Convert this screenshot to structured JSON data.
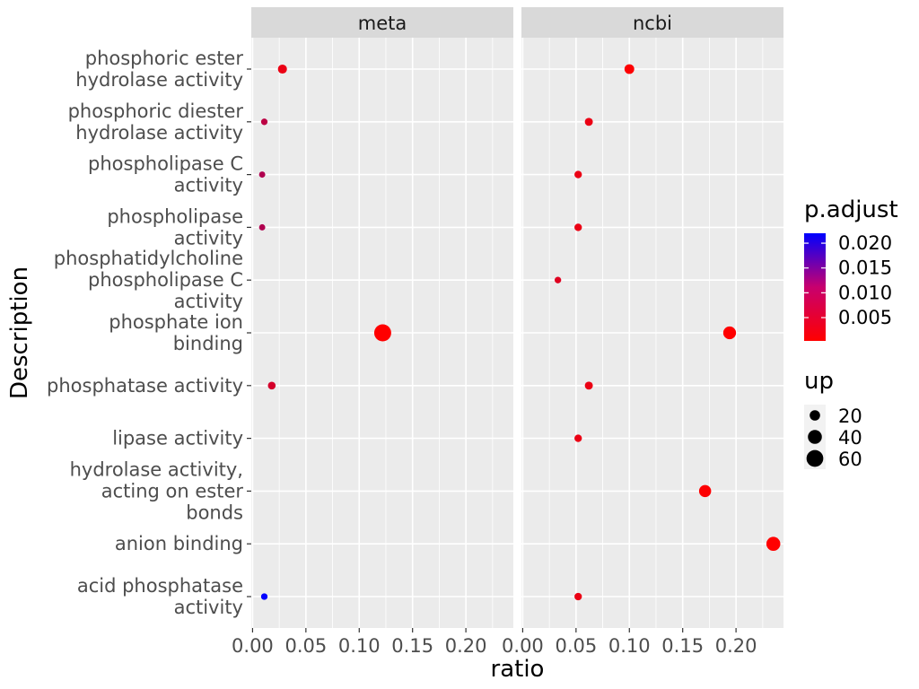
{
  "chart_data": {
    "type": "scatter",
    "xlabel": "ratio",
    "ylabel": "Description",
    "facets": [
      "meta",
      "ncbi"
    ],
    "xlim": [
      -0.0012,
      0.2445
    ],
    "x_ticks": [
      0.0,
      0.05,
      0.1,
      0.15,
      0.2
    ],
    "x_tick_labels": [
      "0.00",
      "0.05",
      "0.10",
      "0.15",
      "0.20"
    ],
    "categories": [
      {
        "lines": [
          "phosphoric ester",
          "hydrolase activity"
        ]
      },
      {
        "lines": [
          "phosphoric diester",
          "hydrolase activity"
        ]
      },
      {
        "lines": [
          "phospholipase C",
          "activity"
        ]
      },
      {
        "lines": [
          "phospholipase",
          "activity"
        ]
      },
      {
        "lines": [
          "phosphatidylcholine",
          "phospholipase C",
          "activity"
        ]
      },
      {
        "lines": [
          "phosphate ion",
          "binding"
        ]
      },
      {
        "lines": [
          "phosphatase activity"
        ]
      },
      {
        "lines": [
          "lipase activity"
        ]
      },
      {
        "lines": [
          "hydrolase activity,",
          "acting on ester",
          "bonds"
        ]
      },
      {
        "lines": [
          "anion binding"
        ]
      },
      {
        "lines": [
          "acid phosphatase",
          "activity"
        ]
      }
    ],
    "points": [
      {
        "facet": "meta",
        "category": 0,
        "ratio": 0.028,
        "up": 14,
        "p_adjust": 0.002
      },
      {
        "facet": "meta",
        "category": 1,
        "ratio": 0.011,
        "up": 5,
        "p_adjust": 0.006
      },
      {
        "facet": "meta",
        "category": 2,
        "ratio": 0.009,
        "up": 4,
        "p_adjust": 0.007
      },
      {
        "facet": "meta",
        "category": 3,
        "ratio": 0.009,
        "up": 4,
        "p_adjust": 0.007
      },
      {
        "facet": "meta",
        "category": 5,
        "ratio": 0.122,
        "up": 62,
        "p_adjust": 0.0003
      },
      {
        "facet": "meta",
        "category": 6,
        "ratio": 0.018,
        "up": 9,
        "p_adjust": 0.004
      },
      {
        "facet": "meta",
        "category": 10,
        "ratio": 0.011,
        "up": 5,
        "p_adjust": 0.022
      },
      {
        "facet": "ncbi",
        "category": 0,
        "ratio": 0.1,
        "up": 17,
        "p_adjust": 0.0005
      },
      {
        "facet": "ncbi",
        "category": 1,
        "ratio": 0.062,
        "up": 10,
        "p_adjust": 0.002
      },
      {
        "facet": "ncbi",
        "category": 2,
        "ratio": 0.052,
        "up": 8,
        "p_adjust": 0.002
      },
      {
        "facet": "ncbi",
        "category": 3,
        "ratio": 0.052,
        "up": 8,
        "p_adjust": 0.002
      },
      {
        "facet": "ncbi",
        "category": 4,
        "ratio": 0.033,
        "up": 5,
        "p_adjust": 0.003
      },
      {
        "facet": "ncbi",
        "category": 5,
        "ratio": 0.194,
        "up": 33,
        "p_adjust": 0.0003
      },
      {
        "facet": "ncbi",
        "category": 6,
        "ratio": 0.062,
        "up": 10,
        "p_adjust": 0.002
      },
      {
        "facet": "ncbi",
        "category": 7,
        "ratio": 0.052,
        "up": 8,
        "p_adjust": 0.002
      },
      {
        "facet": "ncbi",
        "category": 8,
        "ratio": 0.171,
        "up": 29,
        "p_adjust": 0.0005
      },
      {
        "facet": "ncbi",
        "category": 9,
        "ratio": 0.235,
        "up": 40,
        "p_adjust": 0.0003
      },
      {
        "facet": "ncbi",
        "category": 10,
        "ratio": 0.052,
        "up": 8,
        "p_adjust": 0.002
      }
    ],
    "color_legend": {
      "title": "p.adjust",
      "range": [
        0.0003,
        0.022
      ],
      "ticks": [
        0.005,
        0.01,
        0.015,
        0.02
      ],
      "tick_labels": [
        "0.005",
        "0.010",
        "0.015",
        "0.020"
      ],
      "low_color": "#ff0000",
      "high_color": "#0000ff"
    },
    "size_legend": {
      "title": "up",
      "range": [
        4,
        62
      ],
      "values": [
        20,
        40,
        60
      ],
      "labels": [
        "20",
        "40",
        "60"
      ]
    },
    "colors": {
      "panel_bg": "#ebebeb",
      "grid": "#ffffff",
      "strip_bg": "#d9d9d9"
    },
    "grid": true,
    "legend_position": "right"
  }
}
